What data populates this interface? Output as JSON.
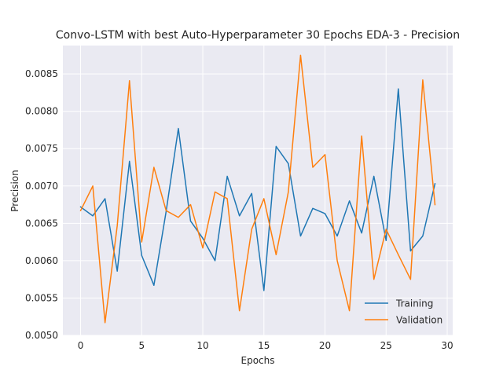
{
  "chart_data": {
    "type": "line",
    "title": "Convo-LSTM with best Auto-Hyperparameter 30 Epochs EDA-3 - Precision",
    "xlabel": "Epochs",
    "ylabel": "Precision",
    "xlim": [
      -1.45,
      30.45
    ],
    "ylim": [
      0.005,
      0.00888
    ],
    "xticks": [
      0,
      5,
      10,
      15,
      20,
      25,
      30
    ],
    "yticks": [
      0.005,
      0.0055,
      0.006,
      0.0065,
      0.007,
      0.0075,
      0.008,
      0.0085
    ],
    "ytick_labels": [
      "0.0050",
      "0.0055",
      "0.0060",
      "0.0065",
      "0.0070",
      "0.0075",
      "0.0080",
      "0.0085"
    ],
    "grid": true,
    "legend_position": "lower-right",
    "x": [
      0,
      1,
      2,
      3,
      4,
      5,
      6,
      7,
      8,
      9,
      10,
      11,
      12,
      13,
      14,
      15,
      16,
      17,
      18,
      19,
      20,
      21,
      22,
      23,
      24,
      25,
      26,
      27,
      28,
      29
    ],
    "series": [
      {
        "name": "Training",
        "color": "#1f77b4",
        "values": [
          0.00672,
          0.0066,
          0.00683,
          0.00586,
          0.00733,
          0.00607,
          0.00567,
          0.00666,
          0.00777,
          0.00653,
          0.0063,
          0.006,
          0.00713,
          0.0066,
          0.0069,
          0.0056,
          0.00753,
          0.0073,
          0.00633,
          0.0067,
          0.00663,
          0.00633,
          0.0068,
          0.00637,
          0.00713,
          0.00627,
          0.0083,
          0.00613,
          0.00633,
          0.00703
        ]
      },
      {
        "name": "Validation",
        "color": "#ff7f0e",
        "values": [
          0.00667,
          0.007,
          0.00517,
          0.00647,
          0.00841,
          0.00625,
          0.00725,
          0.00667,
          0.00658,
          0.00675,
          0.00617,
          0.00692,
          0.00683,
          0.00533,
          0.00642,
          0.00683,
          0.00608,
          0.00692,
          0.00875,
          0.00725,
          0.00742,
          0.006,
          0.00533,
          0.00767,
          0.00575,
          0.00642,
          0.00608,
          0.00575,
          0.00842,
          0.00675
        ]
      }
    ]
  }
}
